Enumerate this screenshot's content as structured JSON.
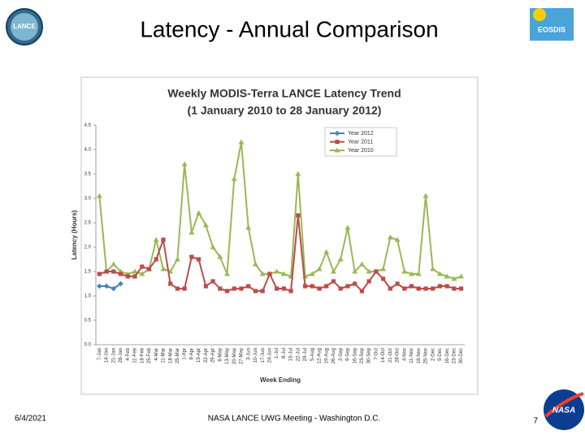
{
  "slide": {
    "title": "Latency - Annual Comparison",
    "date": "6/4/2021",
    "footer": "NASA LANCE UWG Meeting - Washington D.C.",
    "page_number": "7",
    "logos": [
      "LANCE",
      "EOSDIS",
      "NASA"
    ]
  },
  "chart_data": {
    "type": "line",
    "title": "Weekly MODIS-Terra LANCE Latency Trend",
    "subtitle": "(1 January 2010 to 28 January 2012)",
    "x_label": "Week Ending",
    "y_label": "Latency (Hours)",
    "categories": [
      "7-Jan",
      "14-Jan",
      "21-Jan",
      "28-Jan",
      "4-Feb",
      "11-Feb",
      "18-Feb",
      "25-Feb",
      "4-Mar",
      "11-Mar",
      "18-Mar",
      "25-Mar",
      "1-Apr",
      "8-Apr",
      "15-Apr",
      "22-Apr",
      "29-Apr",
      "6-May",
      "13-May",
      "20-May",
      "27-May",
      "3-Jun",
      "10-Jun",
      "17-Jun",
      "24-Jun",
      "1-Jul",
      "8-Jul",
      "15-Jul",
      "22-Jul",
      "29-Jul",
      "5-Aug",
      "12-Aug",
      "19-Aug",
      "26-Aug",
      "2-Sep",
      "9-Sep",
      "16-Sep",
      "23-Sep",
      "30-Sep",
      "7-Oct",
      "14-Oct",
      "21-Oct",
      "28-Oct",
      "4-Nov",
      "11-Nov",
      "18-Nov",
      "25-Nov",
      "2-Dec",
      "9-Dec",
      "16-Dec",
      "23-Dec",
      "30-Dec"
    ],
    "series": [
      {
        "name": "Year 2012",
        "color": "#4a7ebb",
        "marker": "diamond",
        "values": [
          1.2,
          1.2,
          1.15,
          1.25,
          null,
          null,
          null,
          null,
          null,
          null,
          null,
          null,
          null,
          null,
          null,
          null,
          null,
          null,
          null,
          null,
          null,
          null,
          null,
          null,
          null,
          null,
          null,
          null,
          null,
          null,
          null,
          null,
          null,
          null,
          null,
          null,
          null,
          null,
          null,
          null,
          null,
          null,
          null,
          null,
          null,
          null,
          null,
          null,
          null,
          null,
          null,
          null
        ]
      },
      {
        "name": "Year 2011",
        "color": "#be4b48",
        "marker": "square",
        "values": [
          1.45,
          1.5,
          1.5,
          1.45,
          1.4,
          1.4,
          1.6,
          1.55,
          1.75,
          2.15,
          1.25,
          1.15,
          1.15,
          1.8,
          1.75,
          1.2,
          1.3,
          1.15,
          1.1,
          1.15,
          1.15,
          1.2,
          1.1,
          1.1,
          1.45,
          1.15,
          1.15,
          1.1,
          2.65,
          1.2,
          1.2,
          1.15,
          1.2,
          1.3,
          1.15,
          1.2,
          1.25,
          1.1,
          1.3,
          1.5,
          1.35,
          1.15,
          1.25,
          1.15,
          1.2,
          1.15,
          1.15,
          1.15,
          1.2,
          1.2,
          1.15,
          1.15
        ]
      },
      {
        "name": "Year 2010",
        "color": "#98b954",
        "marker": "triangle",
        "values": [
          3.05,
          1.5,
          1.65,
          1.5,
          1.45,
          1.5,
          1.45,
          1.55,
          2.15,
          1.55,
          1.5,
          1.75,
          3.7,
          2.3,
          2.7,
          2.45,
          2.0,
          1.8,
          1.45,
          3.4,
          4.15,
          2.4,
          1.65,
          1.45,
          1.45,
          1.5,
          1.45,
          1.4,
          3.5,
          1.4,
          1.45,
          1.55,
          1.9,
          1.5,
          1.75,
          2.4,
          1.5,
          1.65,
          1.5,
          1.5,
          1.55,
          2.2,
          2.15,
          1.5,
          1.45,
          1.45,
          3.05,
          1.55,
          1.45,
          1.4,
          1.35,
          1.4
        ]
      }
    ],
    "ylim": [
      0,
      4.5
    ],
    "yticks": [
      {
        "value": 0,
        "label": "0.0"
      },
      0.5,
      {
        "value": 1,
        "label": "1.0"
      },
      1.5,
      {
        "value": 2,
        "label": "2.0"
      },
      2.5,
      {
        "value": 3,
        "label": "3.0"
      },
      3.5,
      {
        "value": 4,
        "label": "4.0"
      },
      4.5
    ],
    "grid": false,
    "legend": "top-right"
  }
}
